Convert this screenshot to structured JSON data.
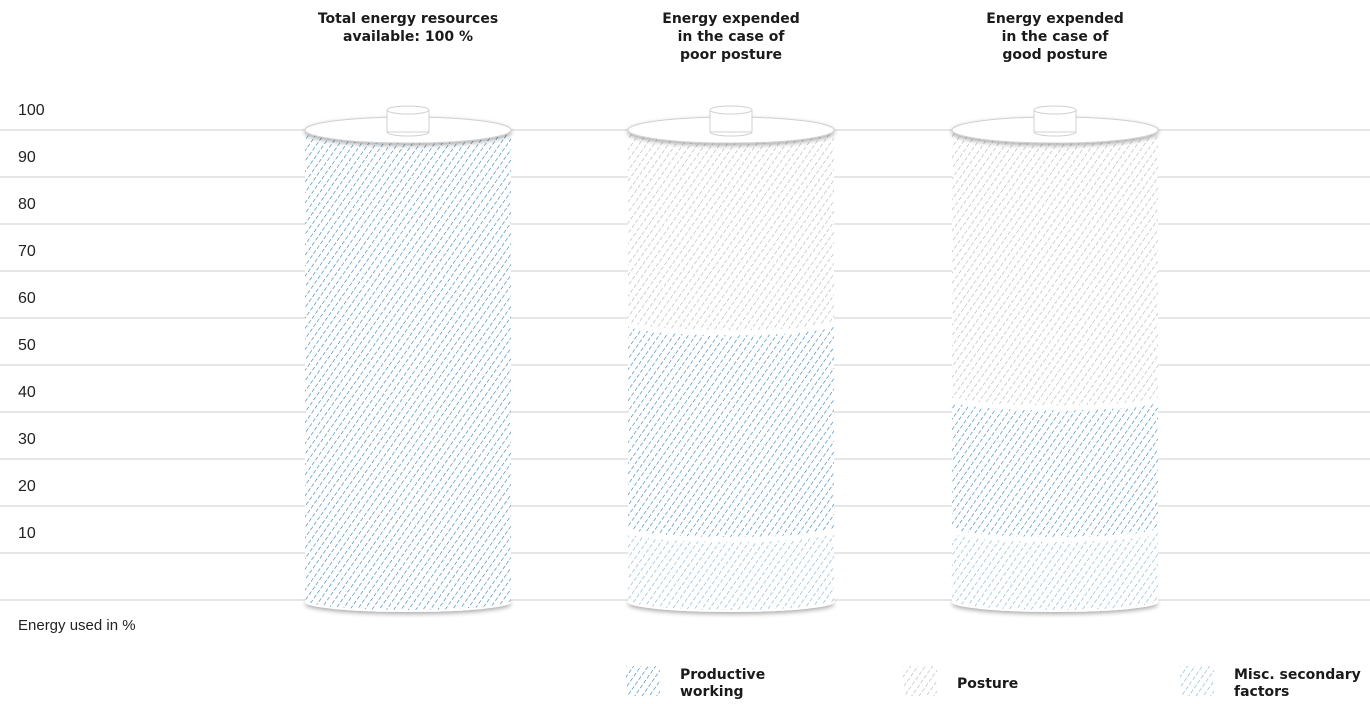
{
  "chart_data": {
    "type": "bar",
    "stacked": true,
    "ylabel": "Energy used in %",
    "ylim": [
      0,
      100
    ],
    "yticks": [
      10,
      20,
      30,
      40,
      50,
      60,
      70,
      80,
      90,
      100
    ],
    "grid": true,
    "legend_position": "bottom",
    "categories": [
      "Total energy resources\navailable: 100 %",
      "Energy expended\nin the case of\npoor posture",
      "Energy expended\nin the case of\ngood posture"
    ],
    "series": [
      {
        "name": "Misc. secondary factors",
        "values": [
          0,
          15,
          15
        ]
      },
      {
        "name": "Productive working",
        "values": [
          100,
          44,
          28
        ]
      },
      {
        "name": "Posture",
        "values": [
          0,
          41,
          57
        ]
      }
    ],
    "colors": {
      "Productive working": "#2e7fb3",
      "Posture": "#b3b3b3",
      "Misc. secondary factors": "#7db2cc",
      "grid": "#cccccc"
    }
  }
}
